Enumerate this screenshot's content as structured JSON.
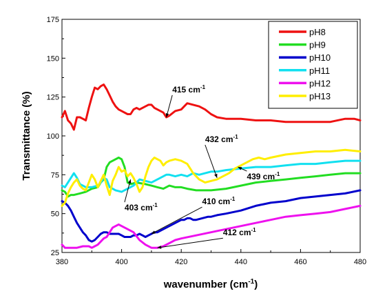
{
  "chart_data": {
    "type": "line",
    "xlabel": "wavenumber (cm",
    "xlabel_sup": "-1",
    "xlabel_tail": ")",
    "ylabel": "Transmittance (%)",
    "xlim": [
      380,
      480
    ],
    "ylim": [
      25,
      175
    ],
    "x_ticks": [
      380,
      400,
      420,
      440,
      460,
      480
    ],
    "y_ticks": [
      25,
      50,
      75,
      100,
      125,
      150,
      175
    ],
    "grid": false,
    "legend_position": "top-right",
    "series": [
      {
        "name": "pH8",
        "color": "#ee1111",
        "points": [
          [
            380,
            112
          ],
          [
            381,
            116
          ],
          [
            382,
            110
          ],
          [
            383,
            108
          ],
          [
            384,
            104
          ],
          [
            385,
            112
          ],
          [
            386,
            112
          ],
          [
            387,
            111
          ],
          [
            388,
            110
          ],
          [
            389,
            118
          ],
          [
            390,
            125
          ],
          [
            391,
            131
          ],
          [
            392,
            130
          ],
          [
            393,
            132
          ],
          [
            394,
            133
          ],
          [
            395,
            130
          ],
          [
            396,
            126
          ],
          [
            397,
            122
          ],
          [
            398,
            119
          ],
          [
            399,
            117
          ],
          [
            400,
            116
          ],
          [
            402,
            114
          ],
          [
            403,
            114
          ],
          [
            404,
            117
          ],
          [
            405,
            118
          ],
          [
            406,
            117
          ],
          [
            407,
            118
          ],
          [
            408,
            119
          ],
          [
            409,
            120
          ],
          [
            410,
            120
          ],
          [
            411,
            118
          ],
          [
            412,
            117
          ],
          [
            413,
            116
          ],
          [
            414,
            115
          ],
          [
            415,
            112
          ],
          [
            416,
            113
          ],
          [
            418,
            116
          ],
          [
            420,
            117
          ],
          [
            421,
            119
          ],
          [
            422,
            121
          ],
          [
            424,
            120
          ],
          [
            426,
            119
          ],
          [
            428,
            117
          ],
          [
            430,
            114
          ],
          [
            432,
            112
          ],
          [
            435,
            111
          ],
          [
            440,
            111
          ],
          [
            445,
            110
          ],
          [
            450,
            110
          ],
          [
            455,
            109
          ],
          [
            460,
            109
          ],
          [
            465,
            109
          ],
          [
            470,
            109
          ],
          [
            475,
            111
          ],
          [
            478,
            111
          ],
          [
            480,
            110
          ]
        ]
      },
      {
        "name": "pH9",
        "color": "#22dd22",
        "points": [
          [
            380,
            65
          ],
          [
            381,
            64
          ],
          [
            382,
            61
          ],
          [
            383,
            62
          ],
          [
            384,
            62
          ],
          [
            386,
            63
          ],
          [
            388,
            64
          ],
          [
            390,
            66
          ],
          [
            392,
            67
          ],
          [
            393,
            70
          ],
          [
            394,
            72
          ],
          [
            395,
            80
          ],
          [
            396,
            83
          ],
          [
            397,
            84
          ],
          [
            398,
            85
          ],
          [
            399,
            86
          ],
          [
            400,
            85
          ],
          [
            401,
            80
          ],
          [
            402,
            70
          ],
          [
            403,
            69
          ],
          [
            405,
            70
          ],
          [
            408,
            69
          ],
          [
            410,
            68
          ],
          [
            412,
            67
          ],
          [
            414,
            66
          ],
          [
            416,
            68
          ],
          [
            418,
            67
          ],
          [
            420,
            67
          ],
          [
            422,
            66
          ],
          [
            425,
            65
          ],
          [
            430,
            65
          ],
          [
            435,
            66
          ],
          [
            440,
            68
          ],
          [
            445,
            70
          ],
          [
            450,
            71
          ],
          [
            455,
            72
          ],
          [
            460,
            73
          ],
          [
            465,
            74
          ],
          [
            470,
            75
          ],
          [
            475,
            76
          ],
          [
            480,
            76
          ]
        ]
      },
      {
        "name": "pH10",
        "color": "#0000cc",
        "points": [
          [
            380,
            58
          ],
          [
            381,
            57
          ],
          [
            382,
            55
          ],
          [
            383,
            52
          ],
          [
            384,
            48
          ],
          [
            385,
            44
          ],
          [
            386,
            41
          ],
          [
            387,
            38
          ],
          [
            388,
            36
          ],
          [
            389,
            33
          ],
          [
            390,
            32
          ],
          [
            391,
            33
          ],
          [
            392,
            35
          ],
          [
            393,
            37
          ],
          [
            394,
            38
          ],
          [
            395,
            38
          ],
          [
            396,
            37
          ],
          [
            397,
            37
          ],
          [
            398,
            37
          ],
          [
            399,
            37
          ],
          [
            400,
            36
          ],
          [
            401,
            35
          ],
          [
            402,
            35
          ],
          [
            403,
            35
          ],
          [
            404,
            36
          ],
          [
            405,
            36
          ],
          [
            406,
            37
          ],
          [
            407,
            36
          ],
          [
            408,
            35
          ],
          [
            409,
            36
          ],
          [
            410,
            37
          ],
          [
            411,
            38
          ],
          [
            412,
            38
          ],
          [
            414,
            40
          ],
          [
            416,
            42
          ],
          [
            418,
            44
          ],
          [
            419,
            45
          ],
          [
            420,
            46
          ],
          [
            421,
            46
          ],
          [
            422,
            47
          ],
          [
            423,
            47
          ],
          [
            424,
            46
          ],
          [
            425,
            46
          ],
          [
            427,
            47
          ],
          [
            429,
            48
          ],
          [
            430,
            48
          ],
          [
            432,
            49
          ],
          [
            435,
            50
          ],
          [
            440,
            52
          ],
          [
            445,
            55
          ],
          [
            450,
            57
          ],
          [
            455,
            58
          ],
          [
            460,
            60
          ],
          [
            465,
            61
          ],
          [
            470,
            62
          ],
          [
            475,
            63
          ],
          [
            480,
            65
          ]
        ]
      },
      {
        "name": "pH11",
        "color": "#11e0f0",
        "points": [
          [
            380,
            68
          ],
          [
            381,
            67
          ],
          [
            382,
            70
          ],
          [
            383,
            73
          ],
          [
            384,
            76
          ],
          [
            385,
            73
          ],
          [
            386,
            69
          ],
          [
            387,
            68
          ],
          [
            388,
            67
          ],
          [
            390,
            67
          ],
          [
            392,
            68
          ],
          [
            393,
            70
          ],
          [
            394,
            73
          ],
          [
            395,
            72
          ],
          [
            396,
            67
          ],
          [
            397,
            66
          ],
          [
            398,
            65
          ],
          [
            400,
            64
          ],
          [
            402,
            66
          ],
          [
            404,
            68
          ],
          [
            405,
            70
          ],
          [
            406,
            72
          ],
          [
            408,
            71
          ],
          [
            410,
            70
          ],
          [
            412,
            72
          ],
          [
            414,
            74
          ],
          [
            415,
            75
          ],
          [
            416,
            75
          ],
          [
            418,
            74
          ],
          [
            420,
            75
          ],
          [
            422,
            74
          ],
          [
            424,
            76
          ],
          [
            426,
            75
          ],
          [
            428,
            76
          ],
          [
            430,
            77
          ],
          [
            432,
            77
          ],
          [
            435,
            78
          ],
          [
            440,
            79
          ],
          [
            445,
            80
          ],
          [
            450,
            80
          ],
          [
            455,
            81
          ],
          [
            460,
            82
          ],
          [
            465,
            82
          ],
          [
            470,
            83
          ],
          [
            475,
            84
          ],
          [
            480,
            84
          ]
        ]
      },
      {
        "name": "pH12",
        "color": "#ee11ee",
        "points": [
          [
            380,
            30
          ],
          [
            381,
            28
          ],
          [
            382,
            28
          ],
          [
            383,
            28
          ],
          [
            385,
            28
          ],
          [
            387,
            29
          ],
          [
            389,
            29
          ],
          [
            390,
            28
          ],
          [
            391,
            29
          ],
          [
            392,
            30
          ],
          [
            393,
            32
          ],
          [
            394,
            34
          ],
          [
            395,
            35
          ],
          [
            396,
            38
          ],
          [
            397,
            41
          ],
          [
            398,
            42
          ],
          [
            399,
            43
          ],
          [
            400,
            42
          ],
          [
            402,
            40
          ],
          [
            404,
            38
          ],
          [
            406,
            33
          ],
          [
            408,
            30
          ],
          [
            410,
            28
          ],
          [
            412,
            28
          ],
          [
            414,
            29
          ],
          [
            416,
            31
          ],
          [
            418,
            33
          ],
          [
            420,
            34
          ],
          [
            425,
            36
          ],
          [
            430,
            38
          ],
          [
            435,
            40
          ],
          [
            440,
            42
          ],
          [
            445,
            44
          ],
          [
            450,
            46
          ],
          [
            455,
            48
          ],
          [
            460,
            49
          ],
          [
            465,
            50
          ],
          [
            470,
            51
          ],
          [
            475,
            53
          ],
          [
            480,
            55
          ]
        ]
      },
      {
        "name": "pH13",
        "color": "#ffee00",
        "points": [
          [
            380,
            55
          ],
          [
            381,
            57
          ],
          [
            382,
            63
          ],
          [
            383,
            67
          ],
          [
            384,
            70
          ],
          [
            385,
            72
          ],
          [
            386,
            68
          ],
          [
            387,
            66
          ],
          [
            388,
            65
          ],
          [
            389,
            70
          ],
          [
            390,
            75
          ],
          [
            391,
            72
          ],
          [
            392,
            67
          ],
          [
            393,
            71
          ],
          [
            394,
            75
          ],
          [
            395,
            68
          ],
          [
            396,
            62
          ],
          [
            397,
            71
          ],
          [
            398,
            75
          ],
          [
            399,
            80
          ],
          [
            400,
            77
          ],
          [
            401,
            78
          ],
          [
            402,
            74
          ],
          [
            403,
            76
          ],
          [
            404,
            73
          ],
          [
            405,
            69
          ],
          [
            406,
            64
          ],
          [
            407,
            67
          ],
          [
            408,
            74
          ],
          [
            409,
            80
          ],
          [
            410,
            84
          ],
          [
            411,
            86
          ],
          [
            412,
            85
          ],
          [
            413,
            84
          ],
          [
            414,
            81
          ],
          [
            415,
            83
          ],
          [
            416,
            84
          ],
          [
            418,
            85
          ],
          [
            420,
            84
          ],
          [
            422,
            82
          ],
          [
            424,
            76
          ],
          [
            426,
            72
          ],
          [
            428,
            70
          ],
          [
            430,
            71
          ],
          [
            432,
            72
          ],
          [
            434,
            74
          ],
          [
            436,
            76
          ],
          [
            438,
            79
          ],
          [
            440,
            81
          ],
          [
            442,
            83
          ],
          [
            444,
            85
          ],
          [
            446,
            86
          ],
          [
            448,
            85
          ],
          [
            450,
            86
          ],
          [
            455,
            88
          ],
          [
            460,
            89
          ],
          [
            465,
            90
          ],
          [
            470,
            90
          ],
          [
            475,
            91
          ],
          [
            480,
            90
          ]
        ]
      }
    ],
    "annotations": [
      {
        "label": "415 cm",
        "sup": "-1",
        "point": [
          415,
          112
        ],
        "text_at": [
          417,
          128
        ]
      },
      {
        "label": "432 cm",
        "sup": "-1",
        "point": [
          432,
          73
        ],
        "text_at": [
          428,
          96
        ]
      },
      {
        "label": "439 cm",
        "sup": "-1",
        "point": [
          439,
          80
        ],
        "text_at": [
          442,
          72
        ]
      },
      {
        "label": "403 cm",
        "sup": "-1",
        "point": [
          403,
          72
        ],
        "text_at": [
          401,
          52
        ]
      },
      {
        "label": "410 cm",
        "sup": "-1",
        "point": [
          410,
          37
        ],
        "text_at": [
          427,
          56
        ]
      },
      {
        "label": "412 cm",
        "sup": "-1",
        "point": [
          412,
          28
        ],
        "text_at": [
          434,
          36
        ]
      }
    ]
  }
}
